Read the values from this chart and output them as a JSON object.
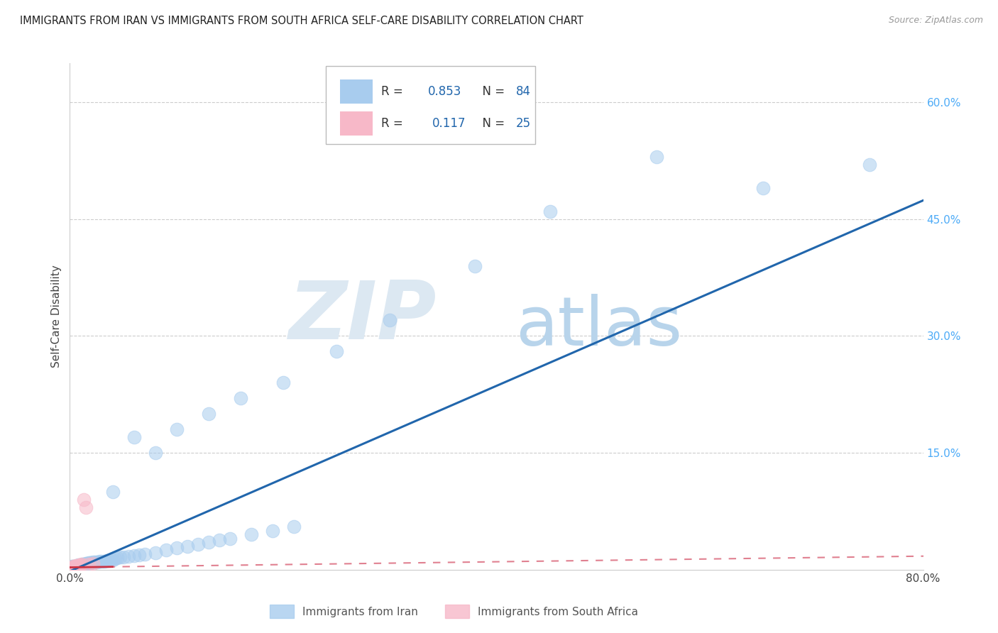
{
  "title": "IMMIGRANTS FROM IRAN VS IMMIGRANTS FROM SOUTH AFRICA SELF-CARE DISABILITY CORRELATION CHART",
  "source": "Source: ZipAtlas.com",
  "ylabel": "Self-Care Disability",
  "iran_R": 0.853,
  "iran_N": 84,
  "sa_R": 0.117,
  "sa_N": 25,
  "iran_color": "#a8ccee",
  "sa_color": "#f7b8c8",
  "iran_line_color": "#2166ac",
  "sa_line_solid_color": "#d44",
  "sa_line_dash_color": "#f4a0b8",
  "xlim": [
    0.0,
    0.8
  ],
  "ylim": [
    0.0,
    0.65
  ],
  "iran_line_slope": 0.595,
  "iran_line_intercept": -0.002,
  "sa_line_slope": 0.018,
  "sa_line_intercept": 0.003,
  "iran_x": [
    0.001,
    0.001,
    0.001,
    0.002,
    0.002,
    0.002,
    0.002,
    0.003,
    0.003,
    0.003,
    0.003,
    0.004,
    0.004,
    0.004,
    0.005,
    0.005,
    0.005,
    0.006,
    0.006,
    0.007,
    0.007,
    0.007,
    0.008,
    0.008,
    0.008,
    0.009,
    0.009,
    0.01,
    0.01,
    0.011,
    0.011,
    0.012,
    0.012,
    0.013,
    0.014,
    0.015,
    0.016,
    0.017,
    0.018,
    0.019,
    0.02,
    0.022,
    0.024,
    0.026,
    0.028,
    0.03,
    0.032,
    0.034,
    0.036,
    0.038,
    0.04,
    0.042,
    0.044,
    0.047,
    0.05,
    0.055,
    0.06,
    0.065,
    0.07,
    0.08,
    0.09,
    0.1,
    0.11,
    0.12,
    0.13,
    0.14,
    0.15,
    0.17,
    0.19,
    0.21,
    0.04,
    0.06,
    0.08,
    0.1,
    0.13,
    0.16,
    0.2,
    0.25,
    0.3,
    0.38,
    0.45,
    0.55,
    0.65,
    0.75
  ],
  "iran_y": [
    0.001,
    0.002,
    0.003,
    0.001,
    0.002,
    0.003,
    0.004,
    0.001,
    0.002,
    0.003,
    0.004,
    0.002,
    0.003,
    0.004,
    0.002,
    0.003,
    0.004,
    0.003,
    0.004,
    0.003,
    0.004,
    0.005,
    0.004,
    0.005,
    0.006,
    0.004,
    0.005,
    0.005,
    0.006,
    0.005,
    0.006,
    0.006,
    0.007,
    0.007,
    0.007,
    0.008,
    0.008,
    0.008,
    0.009,
    0.009,
    0.009,
    0.01,
    0.01,
    0.01,
    0.011,
    0.011,
    0.011,
    0.012,
    0.012,
    0.013,
    0.013,
    0.014,
    0.015,
    0.016,
    0.016,
    0.017,
    0.018,
    0.019,
    0.02,
    0.022,
    0.025,
    0.028,
    0.03,
    0.033,
    0.035,
    0.038,
    0.04,
    0.045,
    0.05,
    0.055,
    0.1,
    0.17,
    0.15,
    0.18,
    0.2,
    0.22,
    0.24,
    0.28,
    0.32,
    0.39,
    0.46,
    0.53,
    0.49,
    0.52
  ],
  "sa_x": [
    0.001,
    0.001,
    0.001,
    0.002,
    0.002,
    0.002,
    0.003,
    0.003,
    0.003,
    0.004,
    0.004,
    0.005,
    0.005,
    0.006,
    0.006,
    0.007,
    0.007,
    0.008,
    0.009,
    0.01,
    0.011,
    0.013,
    0.015,
    0.018,
    0.022
  ],
  "sa_y": [
    0.001,
    0.002,
    0.003,
    0.001,
    0.002,
    0.003,
    0.002,
    0.003,
    0.004,
    0.002,
    0.003,
    0.003,
    0.004,
    0.004,
    0.005,
    0.004,
    0.005,
    0.005,
    0.006,
    0.006,
    0.007,
    0.09,
    0.08,
    0.007,
    0.008
  ]
}
